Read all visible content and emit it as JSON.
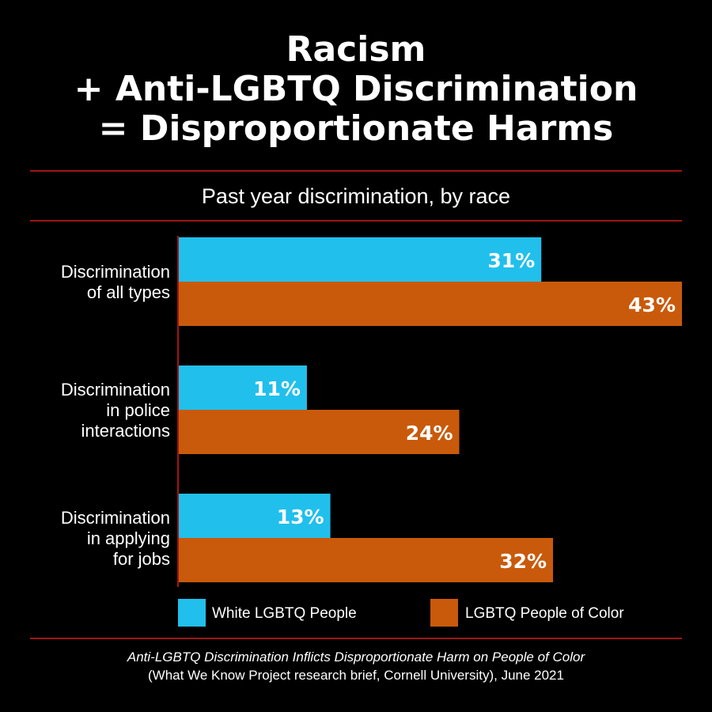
{
  "title_lines": [
    "Racism",
    "+ Anti-LGBTQ Discrimination",
    "= Disproportionate Harms"
  ],
  "subtitle": "Past year discrimination, by race",
  "colors": {
    "white_lgbtq": "#21bfec",
    "lgbtq_poc": "#c95a0b",
    "rule": "#a01515",
    "background": "#000000",
    "text": "#ffffff"
  },
  "chart_data": {
    "type": "bar",
    "orientation": "horizontal",
    "categories": [
      [
        "Discrimination",
        "of all types"
      ],
      [
        "Discrimination",
        "in police",
        "interactions"
      ],
      [
        "Discrimination",
        "in applying",
        "for jobs"
      ]
    ],
    "series": [
      {
        "name": "White LGBTQ People",
        "values": [
          31,
          11,
          13
        ],
        "labels": [
          "31%",
          "11%",
          "13%"
        ]
      },
      {
        "name": "LGBTQ People of Color",
        "values": [
          43,
          24,
          32
        ],
        "labels": [
          "43%",
          "24%",
          "32%"
        ]
      }
    ],
    "xlim": [
      0,
      43
    ],
    "legend": "bottom",
    "grid": false
  },
  "legend": {
    "white_label": "White LGBTQ People",
    "poc_label": "LGBTQ People of Color"
  },
  "source": {
    "line1": "Anti-LGBTQ Discrimination Inflicts Disproportionate Harm on People of Color",
    "line2": "(What We Know Project research brief, Cornell University), June 2021"
  }
}
